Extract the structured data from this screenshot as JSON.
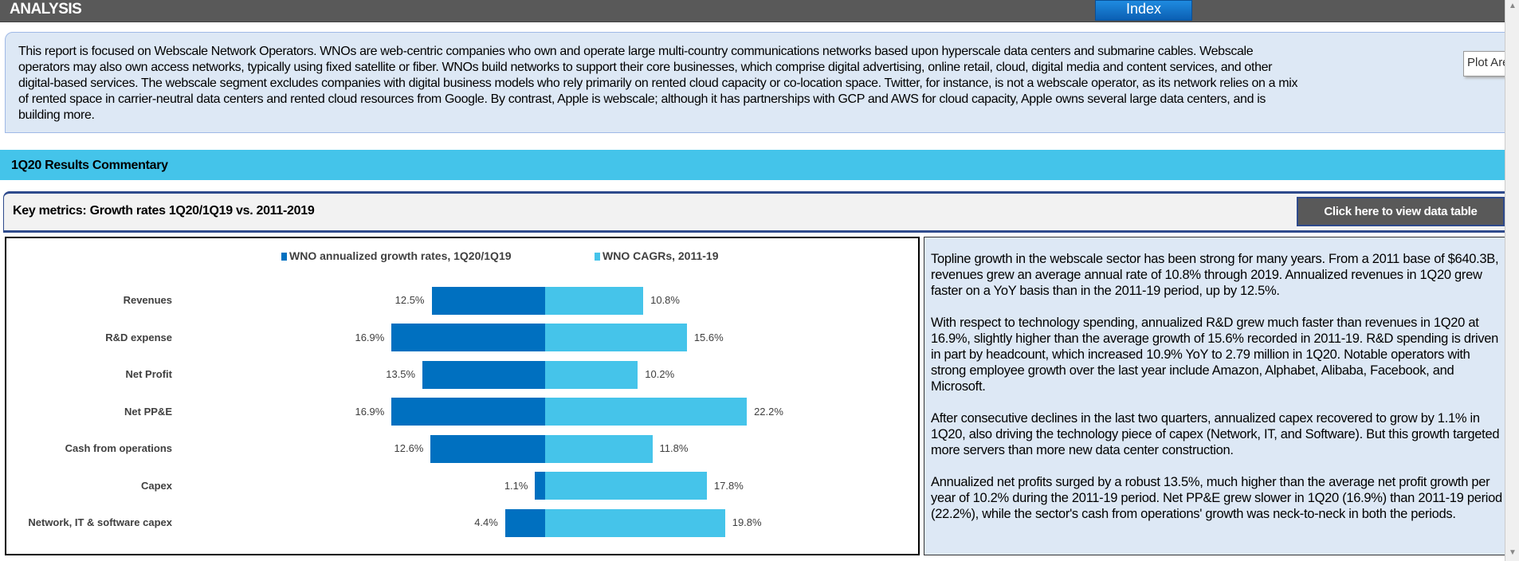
{
  "header": {
    "title": "ANALYSIS",
    "index_button": "Index"
  },
  "intro": {
    "lines": [
      "This report is focused on Webscale Network Operators. WNOs are web-centric companies who own and operate large multi-country communications networks based upon hyperscale data centers and submarine cables. Webscale",
      "operators may also own access networks, typically using fixed satellite or fiber. WNOs build networks to support their core businesses, which comprise digital advertising, online retail, cloud, digital media and content services, and other",
      "digital-based services. The webscale segment excludes companies with digital business models who rely primarily on rented cloud capacity or co-location space. Twitter, for instance, is not a webscale operator, as its network relies on a mix",
      "of rented space in carrier-neutral data centers and rented cloud resources from Google. By contrast, Apple is webscale; although it has partnerships with GCP and AWS for cloud capacity, Apple owns several large data centers, and is",
      "building more."
    ]
  },
  "tooltip": "Plot Area",
  "section": {
    "title": "1Q20 Results Commentary"
  },
  "key_metrics": {
    "title": "Key metrics: Growth rates 1Q20/1Q19 vs. 2011-2019",
    "button": "Click here to view data table"
  },
  "colors": {
    "series1": "#0070c0",
    "series2": "#45c4ea",
    "header": "#595959",
    "section": "#44c4ea",
    "panel": "#dde8f5"
  },
  "chart_data": {
    "type": "bar",
    "orientation": "horizontal-diverging",
    "categories": [
      "Revenues",
      "R&D expense",
      "Net Profit",
      "Net PP&E",
      "Cash from operations",
      "Capex",
      "Network, IT & software capex"
    ],
    "series": [
      {
        "name": "WNO annualized growth rates, 1Q20/1Q19",
        "values": [
          12.5,
          16.9,
          13.5,
          16.9,
          12.6,
          1.1,
          4.4
        ],
        "labels": [
          "12.5%",
          "16.9%",
          "13.5%",
          "16.9%",
          "12.6%",
          "1.1%",
          "4.4%"
        ],
        "direction": "left"
      },
      {
        "name": "WNO CAGRs, 2011-19",
        "values": [
          10.8,
          15.6,
          10.2,
          22.2,
          11.8,
          17.8,
          19.8
        ],
        "labels": [
          "10.8%",
          "15.6%",
          "10.2%",
          "22.2%",
          "11.8%",
          "17.8%",
          "19.8%"
        ],
        "direction": "right"
      }
    ],
    "legend": "top",
    "grid": false,
    "unit": "%"
  },
  "commentary": {
    "paragraphs": [
      "Topline growth in the webscale sector has been strong for many years. From a 2011 base of $640.3B, revenues grew an average annual rate of 10.8% through 2019. Annualized revenues in 1Q20 grew faster on a YoY basis than in the 2011-19 period, up by 12.5%.",
      "With respect to technology spending, annualized R&D grew much faster than revenues in 1Q20 at 16.9%, slightly higher than the average growth of 15.6% recorded in 2011-19. R&D spending is driven in part by headcount, which increased 10.9% YoY to 2.79 million in 1Q20. Notable operators with strong employee growth over the last year include Amazon, Alphabet, Alibaba, Facebook, and Microsoft.",
      "After consecutive declines in the last two quarters, annualized capex recovered to grow by 1.1% in 1Q20, also driving the technology piece of capex (Network, IT, and Software). But this growth targeted more servers than more new data center construction.",
      "Annualized net profits surged by a robust 13.5%, much higher than the average net profit growth per year of 10.2% during the 2011-19 period. Net PP&E grew slower in 1Q20 (16.9%) than 2011-19 period (22.2%), while the sector's cash from operations' growth was neck-to-neck in both the periods."
    ]
  }
}
